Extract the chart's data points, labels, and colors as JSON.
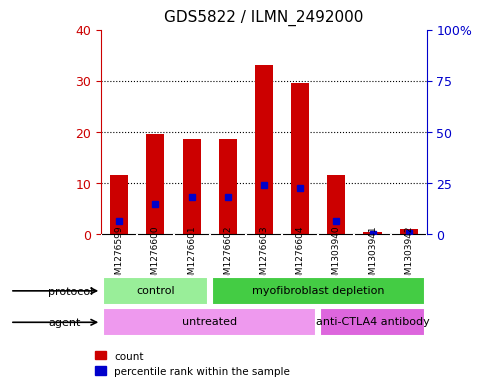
{
  "title": "GDS5822 / ILMN_2492000",
  "samples": [
    "GSM1276599",
    "GSM1276600",
    "GSM1276601",
    "GSM1276602",
    "GSM1276603",
    "GSM1276604",
    "GSM1303940",
    "GSM1303941",
    "GSM1303942"
  ],
  "counts": [
    11.5,
    19.5,
    18.5,
    18.5,
    33.0,
    29.5,
    11.5,
    0.3,
    1.0
  ],
  "percentiles": [
    6.5,
    14.5,
    18.0,
    18.0,
    24.0,
    22.5,
    6.5,
    0.0,
    0.5
  ],
  "ylim_left": [
    0,
    40
  ],
  "ylim_right": [
    0,
    100
  ],
  "yticks_left": [
    0,
    10,
    20,
    30,
    40
  ],
  "yticks_right": [
    0,
    25,
    50,
    75,
    100
  ],
  "ytick_labels_right": [
    "0",
    "25",
    "50",
    "75",
    "100%"
  ],
  "bar_color": "#cc0000",
  "percentile_color": "#0000cc",
  "bar_width": 0.5,
  "grid_color": "black",
  "protocol_groups": [
    {
      "label": "control",
      "start": 0,
      "end": 3,
      "color": "#99ee99"
    },
    {
      "label": "myofibroblast depletion",
      "start": 3,
      "end": 9,
      "color": "#44cc44"
    }
  ],
  "agent_groups": [
    {
      "label": "untreated",
      "start": 0,
      "end": 6,
      "color": "#ee99ee"
    },
    {
      "label": "anti-CTLA4 antibody",
      "start": 6,
      "end": 9,
      "color": "#dd66dd"
    }
  ],
  "protocol_label": "protocol",
  "agent_label": "agent",
  "legend_count_label": "count",
  "legend_percentile_label": "percentile rank within the sample",
  "bg_color": "#ffffff",
  "plot_bg_color": "#ffffff",
  "tick_label_color_left": "#cc0000",
  "tick_label_color_right": "#0000cc",
  "sample_box_color": "#cccccc"
}
